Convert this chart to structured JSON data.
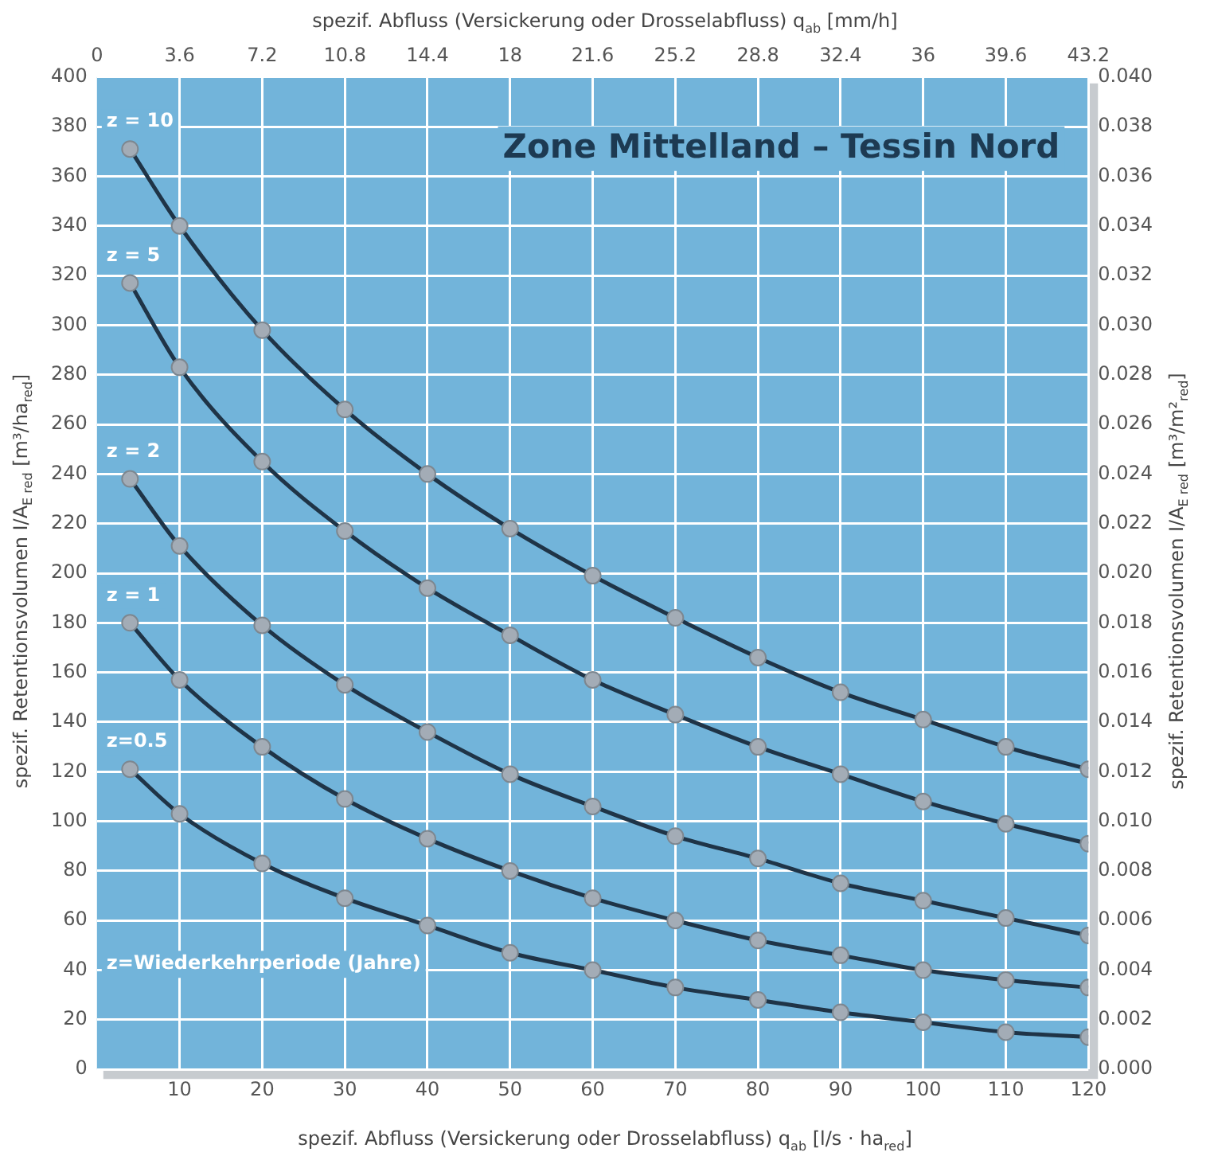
{
  "chart_data": {
    "type": "line",
    "title": "Zone Mittelland – Tessin Nord",
    "xlabel": "spezif. Abfluss (Versickerung oder Drosselabfluss) q$_{ab}$ [l/s · ha$_{red}$]",
    "x2label": "spezif. Abfluss (Versickerung oder Drosselabfluss) q$_{ab}$ [mm/h]",
    "ylabel": "spezif. Retentionsvolumen I/A$_{E red}$ [m³/ha$_{red}$]",
    "y2label": "spezif. Retentionsvolumen I/A$_{E red}$ [m³/m²$_{red}$]",
    "annotations": [
      "z=Wiederkehrperiode (Jahre)"
    ],
    "x": [
      4,
      10,
      20,
      30,
      40,
      50,
      60,
      70,
      80,
      90,
      100,
      110,
      120
    ],
    "series": [
      {
        "name": "z = 10",
        "color": "#1f3447",
        "values": [
          371,
          340,
          298,
          266,
          240,
          218,
          199,
          182,
          166,
          152,
          141,
          130,
          121
        ]
      },
      {
        "name": "z = 5",
        "color": "#1f3447",
        "values": [
          317,
          283,
          245,
          217,
          194,
          175,
          157,
          143,
          130,
          119,
          108,
          99,
          91
        ]
      },
      {
        "name": "z = 2",
        "color": "#1f3447",
        "values": [
          238,
          211,
          179,
          155,
          136,
          119,
          106,
          94,
          85,
          75,
          68,
          61,
          54
        ]
      },
      {
        "name": "z = 1",
        "color": "#1f3447",
        "values": [
          180,
          157,
          130,
          109,
          93,
          80,
          69,
          60,
          52,
          46,
          40,
          36,
          33
        ]
      },
      {
        "name": "z=0.5",
        "color": "#1f3447",
        "values": [
          121,
          103,
          83,
          69,
          58,
          47,
          40,
          33,
          28,
          23,
          19,
          15,
          13
        ]
      }
    ],
    "xlim": [
      0,
      120
    ],
    "xticks": [
      10,
      20,
      30,
      40,
      50,
      60,
      70,
      80,
      90,
      100,
      110,
      120
    ],
    "x2lim": [
      0,
      43.2
    ],
    "x2ticks": [
      0,
      3.6,
      7.2,
      10.8,
      14.4,
      18,
      21.6,
      25.2,
      28.8,
      32.4,
      36,
      39.6,
      43.2
    ],
    "ylim": [
      0,
      400
    ],
    "yticks": [
      0,
      20,
      40,
      60,
      80,
      100,
      120,
      140,
      160,
      180,
      200,
      220,
      240,
      260,
      280,
      300,
      320,
      340,
      360,
      380,
      400
    ],
    "y2lim": [
      0,
      0.04
    ],
    "y2ticks": [
      {
        "value": 0,
        "label": "0.000"
      },
      0.002,
      0.004,
      0.006,
      0.008,
      {
        "value": 0.01,
        "label": "0.010"
      },
      0.012,
      0.014,
      0.016,
      0.018,
      {
        "value": 0.02,
        "label": "0.020"
      },
      0.022,
      0.024,
      0.026,
      0.028,
      {
        "value": 0.03,
        "label": "0.030"
      },
      0.032,
      0.034,
      0.036,
      0.038,
      {
        "value": 0.04,
        "label": "0.040"
      }
    ],
    "grid": true,
    "legend": false,
    "marker": "circle",
    "line_style": "solid"
  }
}
